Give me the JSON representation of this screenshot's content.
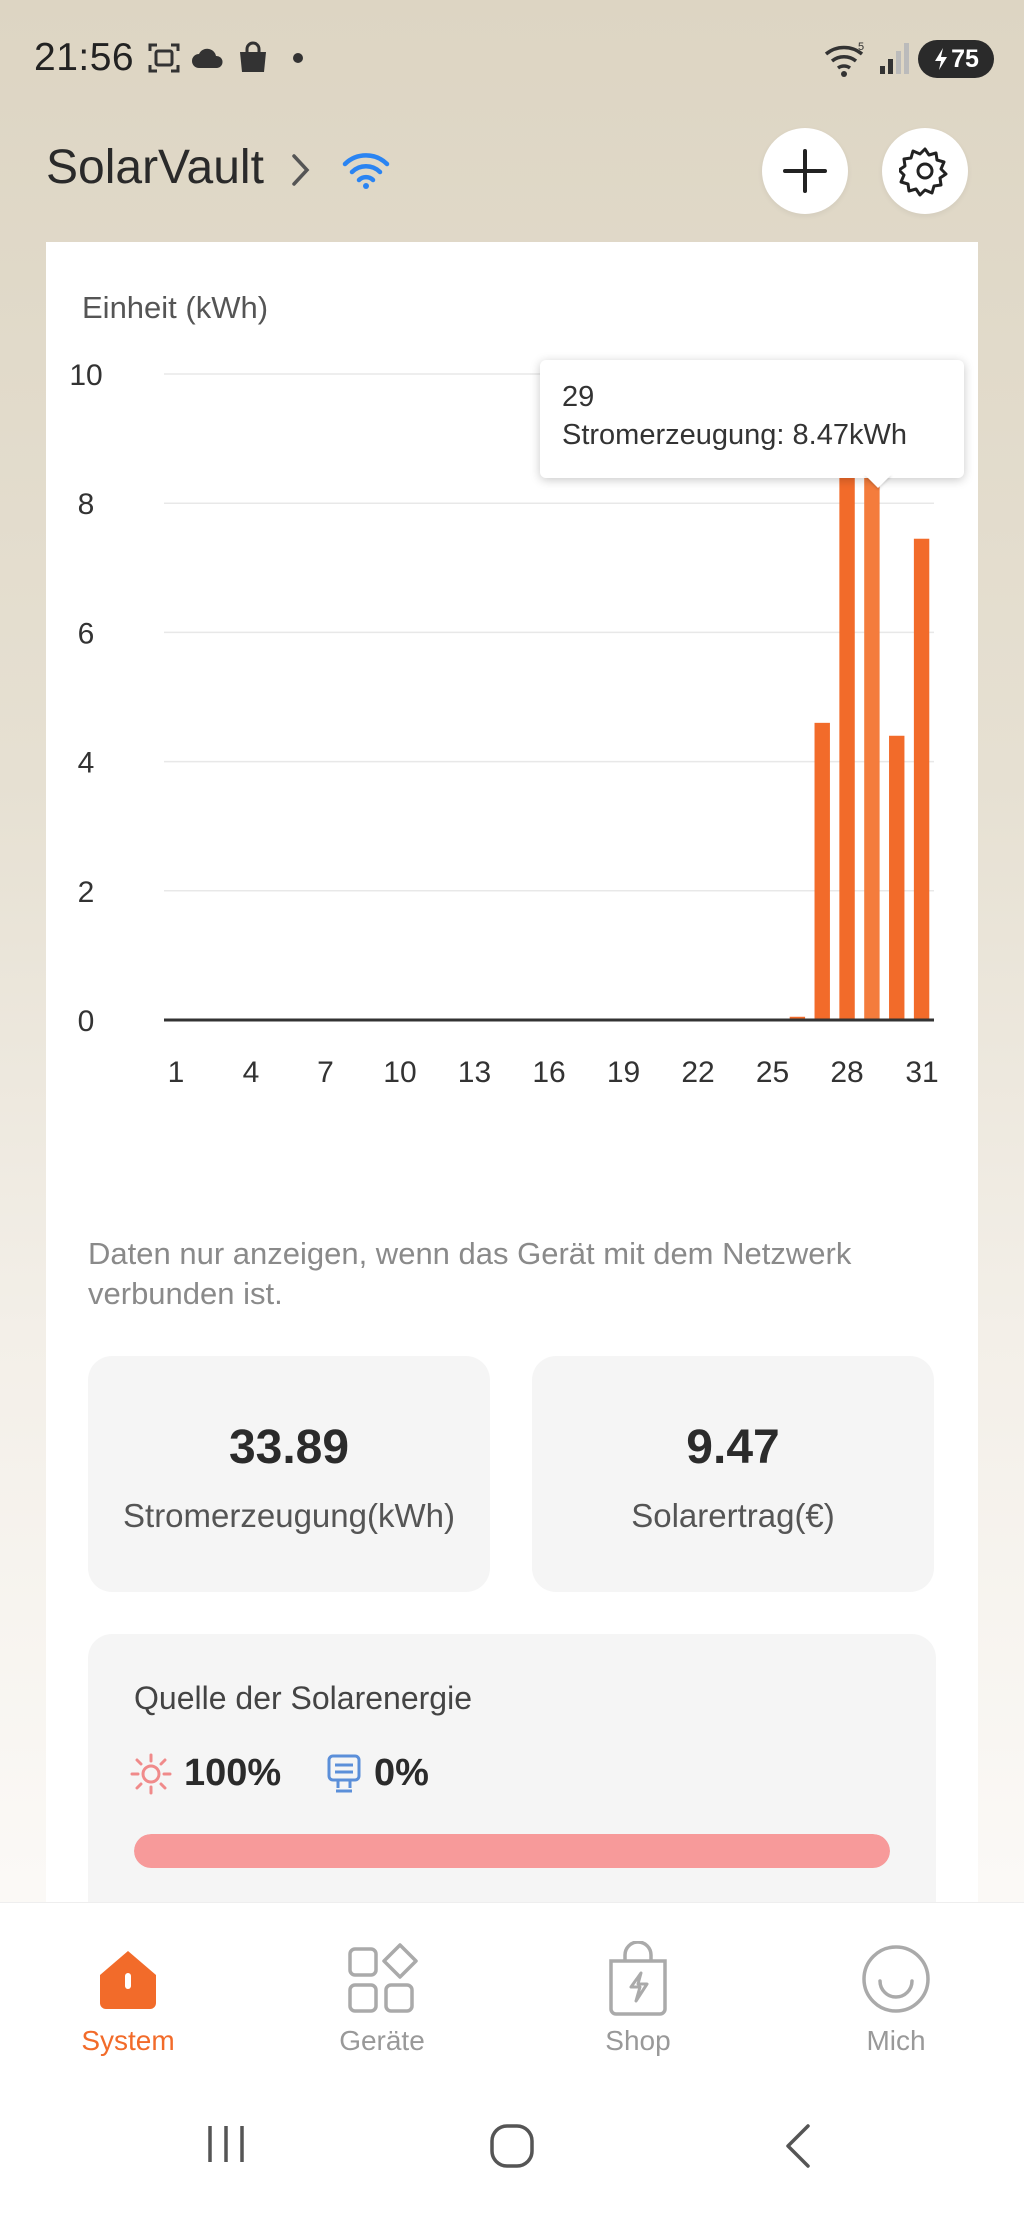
{
  "status_bar": {
    "time": "21:56",
    "battery": "75",
    "icons": [
      "screenshot-icon",
      "cloud-icon",
      "shopping-bag-icon",
      "notification-dot-icon",
      "wifi-icon",
      "signal-icon",
      "battery-charging-icon"
    ]
  },
  "header": {
    "title": "SolarVault",
    "chevron_icon": "chevron-right-icon",
    "connection_icon": "wifi-icon",
    "add_icon": "plus-icon",
    "settings_icon": "gear-icon"
  },
  "chart": {
    "unit_label": "Einheit (kWh)",
    "tooltip": {
      "day": "29",
      "text": "Stromerzeugung: 8.47kWh"
    }
  },
  "chart_data": {
    "type": "bar",
    "title": "",
    "xlabel": "",
    "ylabel": "Einheit (kWh)",
    "ylim": [
      0,
      10
    ],
    "y_ticks": [
      "0",
      "2",
      "4",
      "6",
      "8",
      "10"
    ],
    "x_ticks": [
      "1",
      "4",
      "7",
      "10",
      "13",
      "16",
      "19",
      "22",
      "25",
      "28",
      "31"
    ],
    "categories": [
      "1",
      "2",
      "3",
      "4",
      "5",
      "6",
      "7",
      "8",
      "9",
      "10",
      "11",
      "12",
      "13",
      "14",
      "15",
      "16",
      "17",
      "18",
      "19",
      "20",
      "21",
      "22",
      "23",
      "24",
      "25",
      "26",
      "27",
      "28",
      "29",
      "30",
      "31"
    ],
    "values": [
      0,
      0,
      0,
      0,
      0,
      0,
      0,
      0,
      0,
      0,
      0,
      0,
      0,
      0,
      0,
      0,
      0,
      0,
      0,
      0,
      0,
      0,
      0,
      0,
      0,
      0.05,
      4.6,
      8.9,
      8.47,
      4.4,
      7.45
    ],
    "grid": true,
    "color": "#f26b2a"
  },
  "note": "Daten nur anzeigen, wenn das Gerät mit dem Netzwerk verbunden ist.",
  "stats": [
    {
      "value": "33.89",
      "label": "Stromerzeugung(kWh)"
    },
    {
      "value": "9.47",
      "label": "Solarertrag(€)"
    }
  ],
  "solar_source": {
    "title": "Quelle der Solarenergie",
    "sun_percent": "100%",
    "grid_percent": "0%",
    "sun_fraction": 1.0,
    "sun_icon": "sun-icon",
    "grid_icon": "grid-meter-icon",
    "bar_color": "#f79a9a"
  },
  "bottom_nav": {
    "items": [
      {
        "label": "System",
        "icon": "home-icon",
        "active": true
      },
      {
        "label": "Geräte",
        "icon": "devices-icon",
        "active": false
      },
      {
        "label": "Shop",
        "icon": "shop-bag-icon",
        "active": false
      },
      {
        "label": "Mich",
        "icon": "smiley-icon",
        "active": false
      }
    ]
  },
  "system_nav": [
    "recent-apps-icon",
    "home-circle-icon",
    "back-icon"
  ],
  "colors": {
    "accent": "#f26b2a",
    "wifi_blue": "#2a84f2"
  }
}
